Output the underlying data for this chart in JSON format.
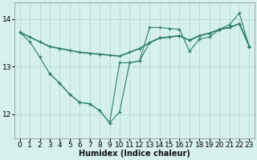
{
  "line_straight_x": [
    0,
    1,
    2,
    3,
    4,
    5,
    6,
    7,
    8,
    9,
    10,
    11,
    12,
    13,
    14,
    15,
    16,
    17,
    18,
    19,
    20,
    21,
    22,
    23
  ],
  "line_straight_y": [
    13.72,
    13.62,
    13.52,
    13.42,
    13.38,
    13.34,
    13.3,
    13.28,
    13.26,
    13.24,
    13.22,
    13.3,
    13.38,
    13.5,
    13.6,
    13.62,
    13.65,
    13.55,
    13.65,
    13.7,
    13.78,
    13.82,
    13.9,
    13.42
  ],
  "line_zigzag_x": [
    0,
    1,
    2,
    3,
    4,
    5,
    6,
    7,
    8,
    9,
    10,
    11,
    12,
    13,
    14,
    15,
    16,
    17,
    18,
    19,
    20,
    21,
    22,
    23
  ],
  "line_zigzag_y": [
    13.72,
    13.52,
    13.2,
    12.85,
    12.65,
    12.42,
    12.25,
    12.22,
    12.08,
    11.82,
    12.05,
    13.08,
    13.12,
    13.82,
    13.82,
    13.8,
    13.78,
    13.32,
    13.58,
    13.62,
    13.78,
    13.88,
    14.12,
    13.4
  ],
  "line_lower_x": [
    3,
    4,
    5,
    6,
    7,
    8,
    9,
    10,
    11,
    12,
    13,
    14,
    15,
    16,
    17,
    18,
    19,
    20,
    21,
    22,
    23
  ],
  "line_lower_y": [
    12.85,
    12.65,
    12.42,
    12.25,
    12.22,
    12.08,
    11.82,
    13.08,
    13.08,
    13.12,
    13.5,
    13.6,
    13.62,
    13.65,
    13.55,
    13.65,
    13.7,
    13.78,
    13.82,
    13.9,
    13.42
  ],
  "line_color": "#2e7d6e",
  "bg_color": "#d6f0ec",
  "grid_color": "#b0d8d0",
  "xlabel": "Humidex (Indice chaleur)",
  "xlim": [
    -0.5,
    23.5
  ],
  "ylim": [
    11.5,
    14.35
  ],
  "yticks": [
    12,
    13,
    14
  ],
  "xticks": [
    0,
    1,
    2,
    3,
    4,
    5,
    6,
    7,
    8,
    9,
    10,
    11,
    12,
    13,
    14,
    15,
    16,
    17,
    18,
    19,
    20,
    21,
    22,
    23
  ],
  "xlabel_fontsize": 7,
  "tick_fontsize": 6.5
}
